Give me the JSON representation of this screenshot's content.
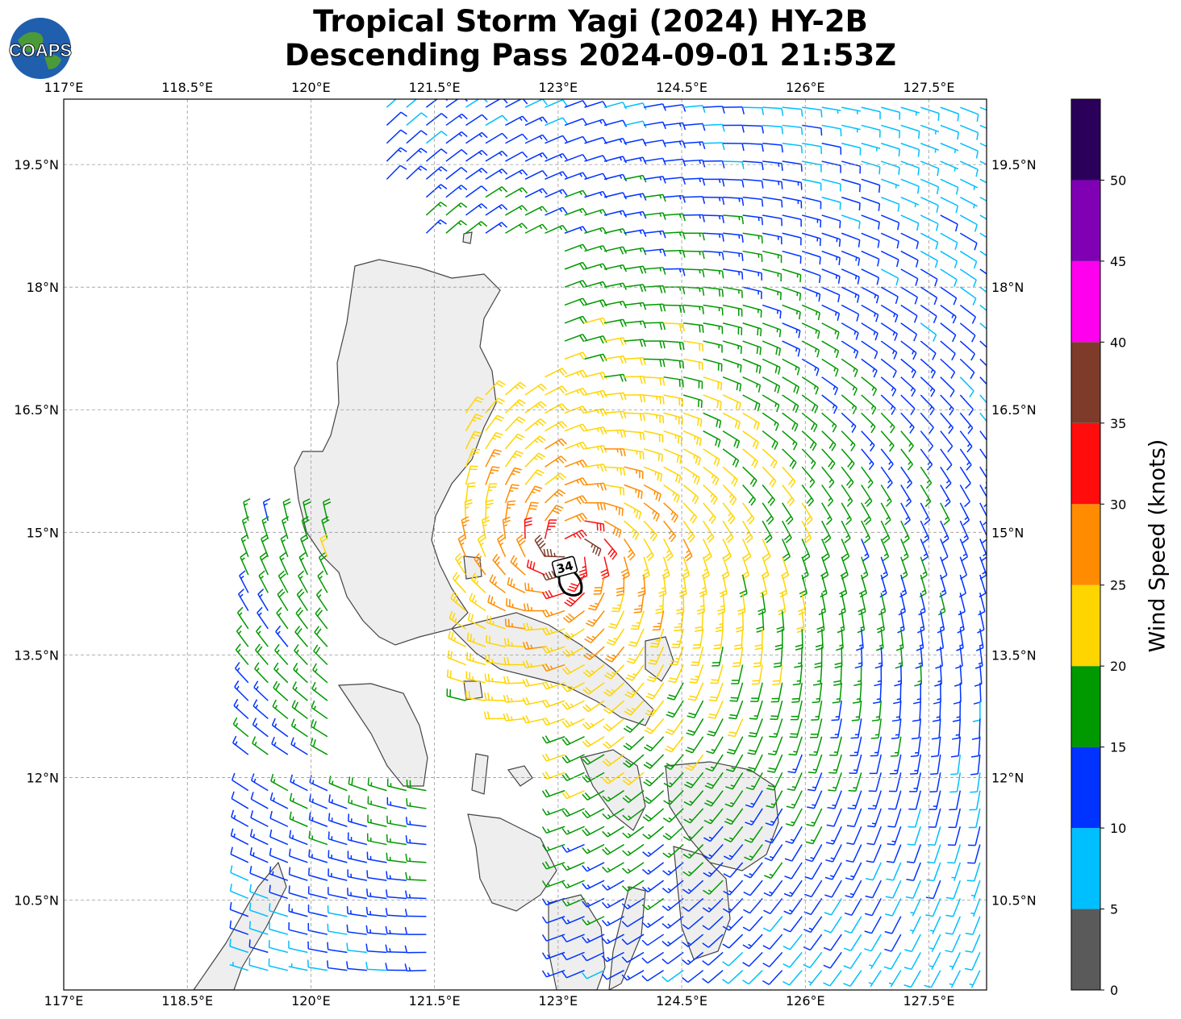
{
  "header": {
    "title_line1": "Tropical Storm Yagi (2024) HY-2B",
    "title_line2": "Descending Pass 2024-09-01 21:53Z",
    "logo_text": "COAPS"
  },
  "map": {
    "lon_ticks": [
      "117°E",
      "118.5°E",
      "120°E",
      "121.5°E",
      "123°E",
      "124.5°E",
      "126°E",
      "127.5°E"
    ],
    "lat_ticks": [
      "19.5°N",
      "18°N",
      "16.5°N",
      "15°N",
      "13.5°N",
      "12°N",
      "10.5°N"
    ],
    "lon_values": [
      117,
      118.5,
      120,
      121.5,
      123,
      124.5,
      126,
      127.5
    ],
    "lat_values": [
      19.5,
      18,
      16.5,
      15,
      13.5,
      12,
      10.5
    ],
    "lon_range": [
      117,
      128.2
    ],
    "lat_range": [
      9.4,
      20.3
    ],
    "contour_label": "34",
    "storm_center": {
      "lon": 123.1,
      "lat": 14.75
    }
  },
  "colorbar": {
    "label": "Wind Speed (knots)",
    "ticks": [
      "0",
      "5",
      "10",
      "15",
      "20",
      "25",
      "30",
      "35",
      "40",
      "45",
      "50"
    ],
    "bins": [
      {
        "from": 0,
        "to": 5,
        "color": "#5a5a5a"
      },
      {
        "from": 5,
        "to": 10,
        "color": "#00bfff"
      },
      {
        "from": 10,
        "to": 15,
        "color": "#0033ff"
      },
      {
        "from": 15,
        "to": 20,
        "color": "#009900"
      },
      {
        "from": 20,
        "to": 25,
        "color": "#ffd500"
      },
      {
        "from": 25,
        "to": 30,
        "color": "#ff8c00"
      },
      {
        "from": 30,
        "to": 35,
        "color": "#ff0d0d"
      },
      {
        "from": 35,
        "to": 40,
        "color": "#7f3b2a"
      },
      {
        "from": 40,
        "to": 45,
        "color": "#ff00ee"
      },
      {
        "from": 45,
        "to": 50,
        "color": "#8000b3"
      },
      {
        "from": 50,
        "to": 55,
        "color": "#2a005a"
      }
    ]
  }
}
